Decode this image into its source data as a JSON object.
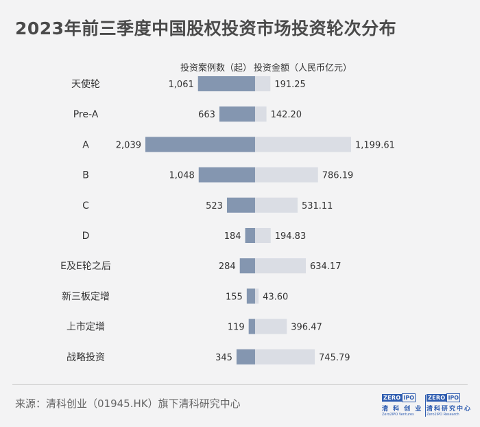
{
  "title": "2023年前三季度中国股权投资市场投资轮次分布",
  "legend": {
    "left": "投资案例数（起）",
    "right": "投资金额（人民币亿元）"
  },
  "source": "来源：清科创业（01945.HK）旗下清科研究中心",
  "logos": [
    {
      "word_a": "ZERO",
      "word_b": "IPO",
      "cn": "清 科 创 业",
      "en": "Zero2IPO Ventures"
    },
    {
      "word_a": "ZERO",
      "word_b": "IPO",
      "cn": "清科研究中心",
      "en": "Zero2IPO Research"
    }
  ],
  "colors": {
    "left_bar": "#8496b0",
    "right_bar": "#dadde4",
    "title": "#4a4a4a",
    "background": "#f3f3f4"
  },
  "chart_data": {
    "type": "bar",
    "orientation": "horizontal-diverging",
    "categories": [
      "天使轮",
      "Pre-A",
      "A",
      "B",
      "C",
      "D",
      "E及E轮之后",
      "新三板定增",
      "上市定增",
      "战略投资"
    ],
    "series": [
      {
        "name": "投资案例数（起）",
        "values": [
          1061,
          663,
          2039,
          1048,
          523,
          184,
          284,
          155,
          119,
          345
        ],
        "labels": [
          "1,061",
          "663",
          "2,039",
          "1,048",
          "523",
          "184",
          "284",
          "155",
          "119",
          "345"
        ]
      },
      {
        "name": "投资金额（人民币亿元）",
        "values": [
          191.25,
          142.2,
          1199.61,
          786.19,
          531.11,
          194.83,
          634.17,
          43.6,
          396.47,
          745.79
        ],
        "labels": [
          "191.25",
          "142.20",
          "1,199.61",
          "786.19",
          "531.11",
          "194.83",
          "634.17",
          "43.60",
          "396.47",
          "745.79"
        ]
      }
    ]
  }
}
